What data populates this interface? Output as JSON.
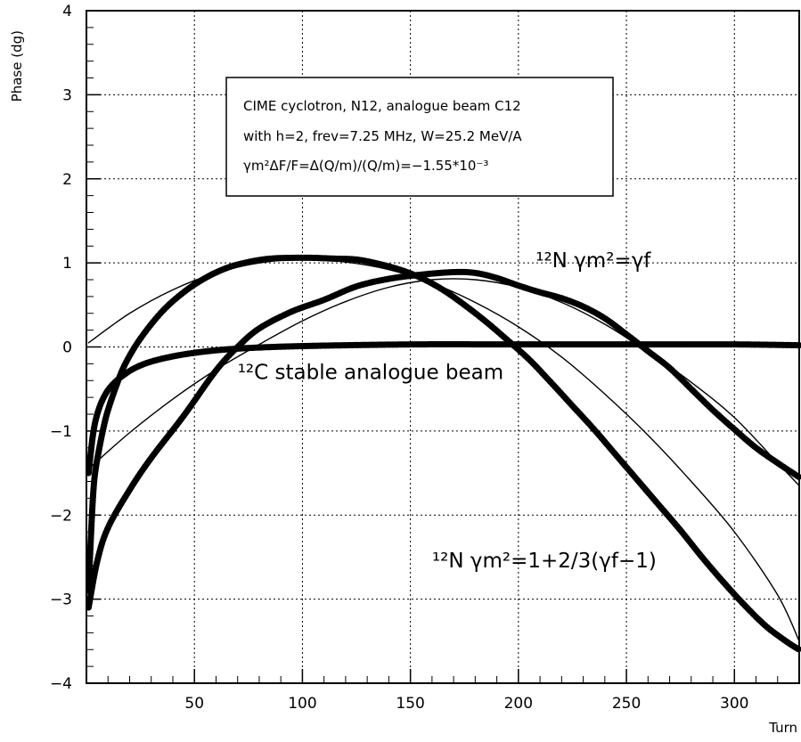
{
  "chart_data": {
    "type": "line",
    "title": "",
    "xlabel": "Turn",
    "ylabel": "Phase (dg)",
    "xlim": [
      0,
      330
    ],
    "ylim": [
      -4,
      4
    ],
    "x_ticks": [
      50,
      100,
      150,
      200,
      250,
      300
    ],
    "y_ticks": [
      -4,
      -3,
      -2,
      -1,
      0,
      1,
      2,
      3,
      4
    ],
    "grid": true,
    "info_box": {
      "line1": "CIME cyclotron, N12, analogue beam C12",
      "line2": "with h=2, frev=7.25 MHz, W=25.2 MeV/A",
      "line3": "γm²ΔF/F=Δ(Q/m)/(Q/m)=−1.55*10⁻³"
    },
    "annotations": [
      {
        "id": "n12-gamma-f",
        "text": "¹²N γm²=γf",
        "x": 208,
        "y": 0.95
      },
      {
        "id": "c12-stable",
        "text": "¹²C stable analogue beam",
        "x": 70,
        "y": -0.38
      },
      {
        "id": "n12-formula",
        "text": "¹²N γm²=1+2/3(γf−1)",
        "x": 160,
        "y": -2.62
      }
    ],
    "series": [
      {
        "id": "c12-data",
        "style": "thick",
        "x": [
          1,
          3,
          5,
          8,
          12,
          18,
          25,
          35,
          50,
          70,
          100,
          150,
          200,
          250,
          300,
          330
        ],
        "y": [
          -1.5,
          -1.05,
          -0.8,
          -0.6,
          -0.45,
          -0.32,
          -0.22,
          -0.14,
          -0.07,
          -0.02,
          0.01,
          0.03,
          0.03,
          0.03,
          0.03,
          0.02
        ]
      },
      {
        "id": "n12-gamma-f-data",
        "style": "thick",
        "x": [
          1,
          5,
          10,
          20,
          30,
          45,
          60,
          70,
          80,
          95,
          110,
          125,
          140,
          155,
          170,
          180,
          190,
          200,
          210,
          220,
          230,
          240,
          250,
          260,
          270,
          280,
          290,
          300,
          310,
          320,
          330
        ],
        "y": [
          -3.1,
          -2.55,
          -2.15,
          -1.7,
          -1.32,
          -0.82,
          -0.28,
          0.0,
          0.22,
          0.42,
          0.56,
          0.72,
          0.81,
          0.86,
          0.89,
          0.88,
          0.82,
          0.73,
          0.65,
          0.58,
          0.48,
          0.34,
          0.15,
          -0.05,
          -0.25,
          -0.5,
          -0.75,
          -0.98,
          -1.2,
          -1.38,
          -1.55
        ]
      },
      {
        "id": "n12-gamma-f-fit",
        "style": "thin",
        "x": [
          1,
          20,
          40,
          60,
          80,
          100,
          120,
          140,
          160,
          180,
          200,
          220,
          240,
          260,
          280,
          300,
          320,
          330
        ],
        "y": [
          -1.45,
          -1.02,
          -0.62,
          -0.27,
          0.03,
          0.31,
          0.54,
          0.71,
          0.8,
          0.8,
          0.71,
          0.53,
          0.27,
          -0.06,
          -0.42,
          -0.84,
          -1.38,
          -1.65
        ]
      },
      {
        "id": "n12-formula-data",
        "style": "thick",
        "x": [
          1,
          2,
          3,
          4,
          6,
          8,
          10,
          14,
          18,
          25,
          35,
          45,
          55,
          65,
          75,
          85,
          95,
          105,
          115,
          125,
          135,
          145,
          155,
          165,
          175,
          185,
          195,
          205,
          215,
          225,
          235,
          245,
          255,
          265,
          275,
          285,
          295,
          305,
          315,
          325,
          330
        ],
        "y": [
          -2.9,
          -2.3,
          -1.8,
          -1.5,
          -1.2,
          -0.95,
          -0.75,
          -0.45,
          -0.2,
          0.1,
          0.42,
          0.65,
          0.82,
          0.94,
          1.01,
          1.05,
          1.06,
          1.06,
          1.05,
          1.04,
          0.99,
          0.92,
          0.82,
          0.68,
          0.5,
          0.3,
          0.08,
          -0.15,
          -0.42,
          -0.7,
          -0.98,
          -1.28,
          -1.58,
          -1.88,
          -2.18,
          -2.5,
          -2.8,
          -3.08,
          -3.33,
          -3.52,
          -3.6
        ]
      },
      {
        "id": "n12-formula-fit",
        "style": "thin",
        "x": [
          1,
          20,
          40,
          60,
          80,
          100,
          120,
          140,
          160,
          180,
          200,
          220,
          240,
          260,
          280,
          300,
          320,
          330
        ],
        "y": [
          0.05,
          0.4,
          0.68,
          0.88,
          1.0,
          1.04,
          1.01,
          0.92,
          0.76,
          0.53,
          0.24,
          -0.12,
          -0.56,
          -1.05,
          -1.6,
          -2.2,
          -2.95,
          -3.5
        ]
      }
    ]
  }
}
